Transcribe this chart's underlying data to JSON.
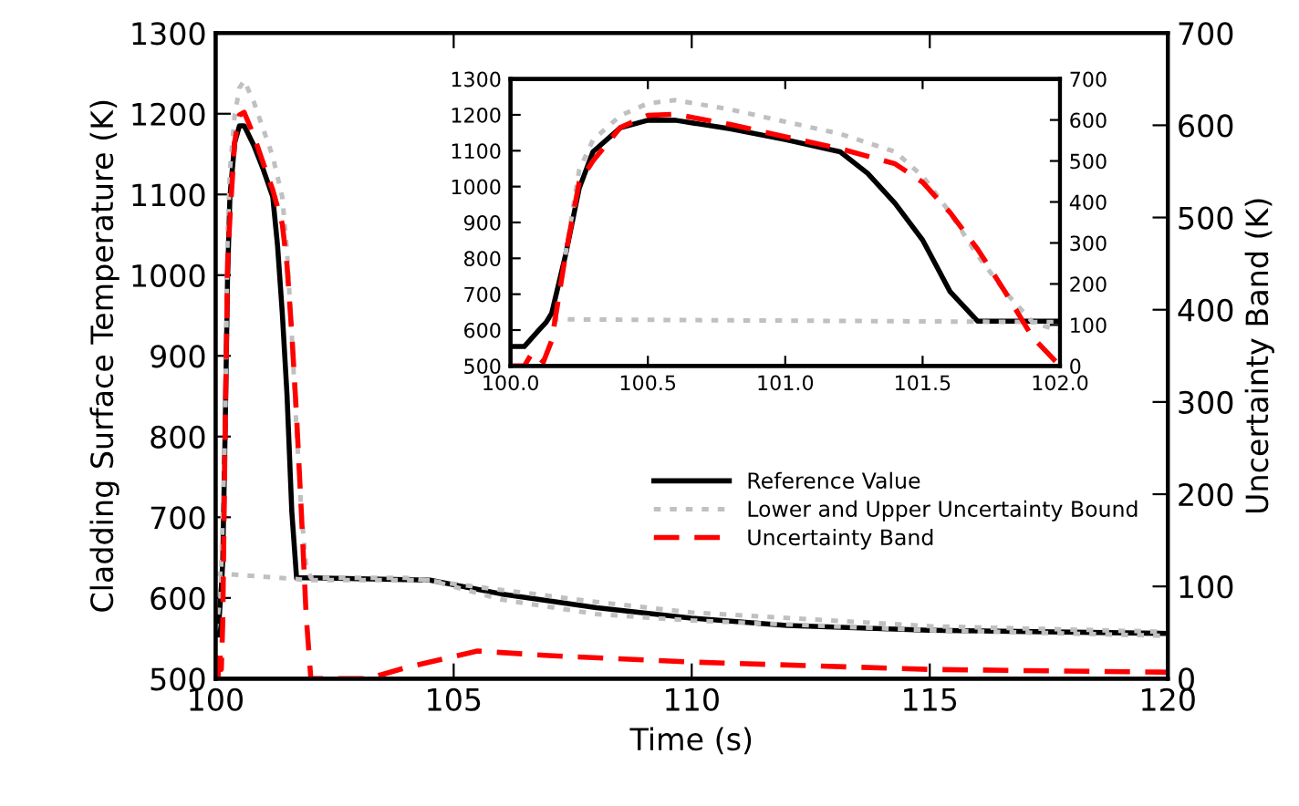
{
  "chart_data": [
    {
      "type": "line",
      "xlabel": "Time (s)",
      "ylabel": "Cladding Surface Temperature (K)",
      "y2label": "Uncertainty Band (K)",
      "xlim": [
        100,
        120
      ],
      "xticks": [
        100,
        105,
        110,
        115,
        120
      ],
      "ylim": [
        500,
        1300
      ],
      "yticks": [
        500,
        600,
        700,
        800,
        900,
        1000,
        1100,
        1200,
        1300
      ],
      "y2lim": [
        0,
        700
      ],
      "y2ticks": [
        0,
        100,
        200,
        300,
        400,
        500,
        600,
        700
      ],
      "grid": false,
      "legend": "center right",
      "series": [
        {
          "name": "Reference Value",
          "color": "#000000",
          "line_style": "solid",
          "x": [
            100,
            100.05,
            100.1,
            100.13,
            100.15,
            100.2,
            100.25,
            100.3,
            100.4,
            100.5,
            100.6,
            100.8,
            101.0,
            101.2,
            101.3,
            101.4,
            101.5,
            101.6,
            101.7,
            102,
            104.5,
            106,
            108,
            110,
            112,
            115,
            120
          ],
          "values": [
            554,
            554,
            597,
            622,
            647,
            808,
            995,
            1097,
            1164,
            1185,
            1185,
            1161,
            1131,
            1097,
            1037,
            953,
            851,
            707,
            625,
            625,
            622,
            605,
            588,
            575,
            566,
            560,
            556
          ]
        },
        {
          "name": "Lower and Upper Uncertainty Bound",
          "color": "#c0c0c0",
          "line_style": "dotted",
          "x": [
            100,
            100.15,
            102,
            104.5,
            106,
            108,
            110,
            115,
            120
          ],
          "values": [
            630,
            630,
            622,
            622,
            598,
            580,
            572,
            560,
            553
          ]
        },
        {
          "color": "#c0c0c0",
          "line_style": "dotted",
          "x": [
            100,
            100.1,
            100.2,
            100.25,
            100.3,
            100.4,
            100.5,
            100.6,
            100.8,
            101.0,
            101.2,
            101.4,
            101.5,
            101.6,
            101.7,
            101.8,
            101.9,
            102,
            104,
            106,
            108,
            110,
            115,
            120
          ],
          "values": [
            560,
            600,
            810,
            1046,
            1130,
            1198,
            1232,
            1241,
            1215,
            1181,
            1147,
            1097,
            1029,
            927,
            808,
            707,
            640,
            625,
            625,
            610,
            595,
            582,
            565,
            558
          ]
        },
        {
          "name": "Uncertainty Band",
          "color": "#ff0000",
          "line_style": "dashed",
          "axis": "y2",
          "x": [
            100,
            100.05,
            100.08,
            100.12,
            100.15,
            100.2,
            100.25,
            100.3,
            100.4,
            100.5,
            100.6,
            100.8,
            101.0,
            101.2,
            101.4,
            101.5,
            101.6,
            101.7,
            101.8,
            101.9,
            102,
            103.2,
            104,
            105.5,
            107,
            110,
            115,
            120
          ],
          "values": [
            0,
            0,
            33,
            10,
            62,
            270,
            448,
            500,
            582,
            611,
            614,
            589,
            559,
            530,
            493,
            448,
            374,
            285,
            181,
            70,
            0,
            0,
            12,
            30,
            25,
            18,
            10,
            7
          ]
        }
      ]
    },
    {
      "type": "line",
      "xlim": [
        100,
        102
      ],
      "xticks": [
        {
          "value": 100,
          "label": "100.0"
        },
        100.5,
        {
          "value": 101,
          "label": "101.0"
        },
        101.5,
        {
          "value": 102,
          "label": "102.0"
        }
      ],
      "ylim": [
        500,
        1300
      ],
      "yticks": [
        500,
        600,
        700,
        800,
        900,
        1000,
        1100,
        1200,
        1300
      ],
      "y2lim": [
        0,
        700
      ],
      "y2ticks": [
        0,
        100,
        200,
        300,
        400,
        500,
        600,
        700
      ],
      "grid": false,
      "series": [
        {
          "color": "#000000",
          "line_style": "solid",
          "x": [
            100,
            100.05,
            100.1,
            100.13,
            100.15,
            100.2,
            100.25,
            100.3,
            100.4,
            100.5,
            100.6,
            100.8,
            101.0,
            101.2,
            101.3,
            101.4,
            101.5,
            101.6,
            101.7,
            102
          ],
          "values": [
            554,
            554,
            597,
            622,
            647,
            808,
            995,
            1097,
            1164,
            1185,
            1185,
            1161,
            1131,
            1097,
            1037,
            953,
            851,
            707,
            625,
            625
          ]
        },
        {
          "color": "#c0c0c0",
          "line_style": "dotted",
          "x": [
            100.15,
            102
          ],
          "values": [
            630,
            622
          ]
        },
        {
          "color": "#c0c0c0",
          "line_style": "dotted",
          "x": [
            100.2,
            100.25,
            100.3,
            100.4,
            100.5,
            100.6,
            100.8,
            101.0,
            101.2,
            101.4,
            101.5,
            101.6,
            101.7,
            101.8,
            101.9,
            102
          ],
          "values": [
            810,
            1046,
            1130,
            1198,
            1232,
            1241,
            1215,
            1181,
            1147,
            1097,
            1029,
            927,
            808,
            707,
            622,
            597
          ]
        },
        {
          "color": "#ff0000",
          "line_style": "dashed",
          "axis": "y2",
          "x": [
            100,
            100.05,
            100.08,
            100.12,
            100.15,
            100.2,
            100.25,
            100.3,
            100.4,
            100.5,
            100.6,
            100.8,
            101.0,
            101.2,
            101.4,
            101.5,
            101.6,
            101.7,
            101.8,
            101.9,
            102
          ],
          "values": [
            0,
            0,
            33,
            10,
            62,
            270,
            448,
            500,
            582,
            611,
            614,
            589,
            559,
            530,
            493,
            448,
            374,
            285,
            181,
            70,
            0
          ]
        }
      ]
    }
  ]
}
